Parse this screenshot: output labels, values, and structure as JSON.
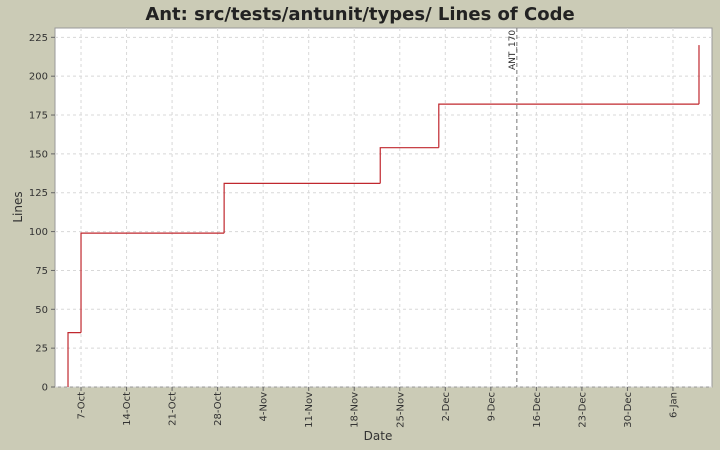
{
  "chart_data": {
    "type": "step",
    "title": "Ant: src/tests/antunit/types/ Lines of Code",
    "x_label": "Date",
    "y_label": "Lines",
    "x": [
      "10-05",
      "10-07",
      "10-29",
      "11-22",
      "12-01",
      "01-10"
    ],
    "series": [
      {
        "name": "Lines",
        "color": "#c0282e",
        "values": [
          35,
          99,
          131,
          154,
          182,
          220
        ]
      }
    ],
    "xlim": [
      "10-03",
      "01-12"
    ],
    "xticks": [
      {
        "value": "10-07",
        "label": "7-Oct"
      },
      {
        "value": "10-14",
        "label": "14-Oct"
      },
      {
        "value": "10-21",
        "label": "21-Oct"
      },
      {
        "value": "10-28",
        "label": "28-Oct"
      },
      {
        "value": "11-04",
        "label": "4-Nov"
      },
      {
        "value": "11-11",
        "label": "11-Nov"
      },
      {
        "value": "11-18",
        "label": "18-Nov"
      },
      {
        "value": "11-25",
        "label": "25-Nov"
      },
      {
        "value": "12-02",
        "label": "2-Dec"
      },
      {
        "value": "12-09",
        "label": "9-Dec"
      },
      {
        "value": "12-16",
        "label": "16-Dec"
      },
      {
        "value": "12-23",
        "label": "23-Dec"
      },
      {
        "value": "12-30",
        "label": "30-Dec"
      },
      {
        "value": "01-06",
        "label": "6-Jan"
      }
    ],
    "ylim": [
      0,
      231
    ],
    "yticks": [
      0,
      25,
      50,
      75,
      100,
      125,
      150,
      175,
      200,
      225
    ],
    "grid": true,
    "markers": [
      {
        "x": "12-13",
        "label": "ANT_170"
      }
    ]
  }
}
